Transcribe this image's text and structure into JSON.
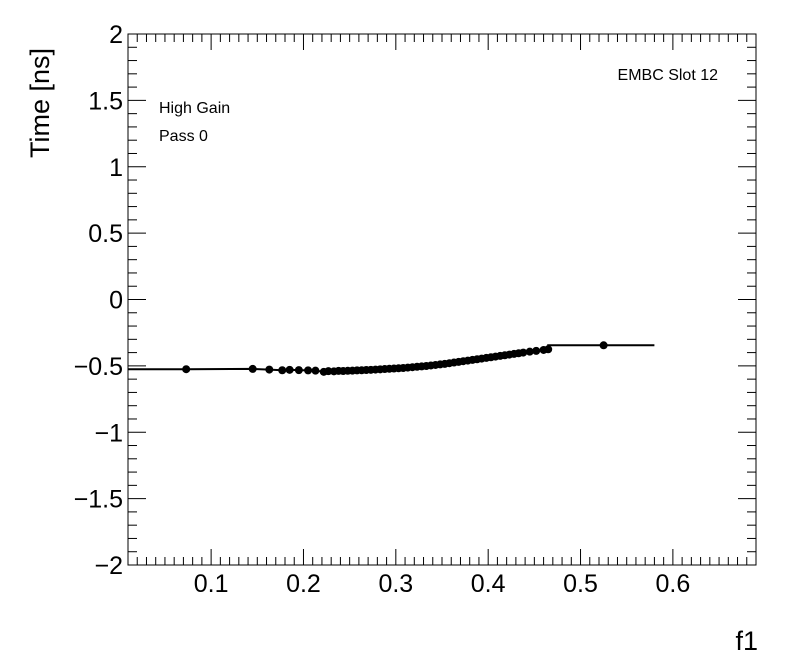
{
  "chart_data": {
    "type": "scatter",
    "title": "",
    "xlabel": "f1",
    "ylabel": "Time [ns]",
    "xlim": [
      0.01,
      0.69
    ],
    "ylim": [
      -2,
      2
    ],
    "x_ticks": [
      "0.1",
      "0.2",
      "0.3",
      "0.4",
      "0.5",
      "0.6"
    ],
    "y_ticks": [
      "−2",
      "−1.5",
      "−1",
      "−0.5",
      "0",
      "0.5",
      "1",
      "1.5",
      "2"
    ],
    "grid": false,
    "annotations": {
      "slot": "EMBC Slot 12",
      "gain": "High Gain",
      "pass": "Pass 0"
    },
    "series": [
      {
        "style": "markers",
        "color": "#000000",
        "points": [
          [
            0.073,
            -0.525
          ],
          [
            0.145,
            -0.523
          ],
          [
            0.163,
            -0.528
          ],
          [
            0.177,
            -0.533
          ],
          [
            0.185,
            -0.53
          ],
          [
            0.195,
            -0.532
          ],
          [
            0.205,
            -0.534
          ],
          [
            0.213,
            -0.536
          ],
          [
            0.222,
            -0.545
          ],
          [
            0.227,
            -0.54
          ],
          [
            0.233,
            -0.541
          ],
          [
            0.238,
            -0.538
          ],
          [
            0.243,
            -0.539
          ],
          [
            0.248,
            -0.537
          ],
          [
            0.253,
            -0.536
          ],
          [
            0.258,
            -0.534
          ],
          [
            0.263,
            -0.533
          ],
          [
            0.268,
            -0.531
          ],
          [
            0.273,
            -0.53
          ],
          [
            0.278,
            -0.528
          ],
          [
            0.283,
            -0.526
          ],
          [
            0.288,
            -0.524
          ],
          [
            0.293,
            -0.522
          ],
          [
            0.298,
            -0.52
          ],
          [
            0.303,
            -0.518
          ],
          [
            0.308,
            -0.516
          ],
          [
            0.313,
            -0.513
          ],
          [
            0.318,
            -0.51
          ],
          [
            0.323,
            -0.507
          ],
          [
            0.328,
            -0.504
          ],
          [
            0.333,
            -0.501
          ],
          [
            0.338,
            -0.497
          ],
          [
            0.343,
            -0.493
          ],
          [
            0.348,
            -0.489
          ],
          [
            0.353,
            -0.485
          ],
          [
            0.358,
            -0.48
          ],
          [
            0.363,
            -0.475
          ],
          [
            0.368,
            -0.47
          ],
          [
            0.373,
            -0.465
          ],
          [
            0.378,
            -0.46
          ],
          [
            0.383,
            -0.455
          ],
          [
            0.388,
            -0.45
          ],
          [
            0.393,
            -0.445
          ],
          [
            0.398,
            -0.44
          ],
          [
            0.403,
            -0.435
          ],
          [
            0.408,
            -0.43
          ],
          [
            0.413,
            -0.425
          ],
          [
            0.418,
            -0.42
          ],
          [
            0.423,
            -0.415
          ],
          [
            0.428,
            -0.41
          ],
          [
            0.433,
            -0.405
          ],
          [
            0.438,
            -0.4
          ],
          [
            0.445,
            -0.393
          ],
          [
            0.452,
            -0.387
          ],
          [
            0.46,
            -0.38
          ],
          [
            0.465,
            -0.375
          ],
          [
            0.525,
            -0.345
          ]
        ]
      },
      {
        "style": "line",
        "color": "#000000",
        "points": [
          [
            0.01,
            -0.525
          ],
          [
            0.073,
            -0.525
          ],
          [
            0.145,
            -0.523
          ],
          [
            0.163,
            -0.528
          ],
          [
            0.177,
            -0.533
          ],
          [
            0.185,
            -0.53
          ],
          [
            0.195,
            -0.532
          ],
          [
            0.205,
            -0.534
          ],
          [
            0.213,
            -0.536
          ],
          [
            0.222,
            -0.545
          ],
          [
            0.227,
            -0.54
          ],
          [
            0.233,
            -0.541
          ],
          [
            0.238,
            -0.538
          ],
          [
            0.243,
            -0.539
          ],
          [
            0.248,
            -0.537
          ],
          [
            0.253,
            -0.536
          ],
          [
            0.258,
            -0.534
          ],
          [
            0.263,
            -0.533
          ],
          [
            0.268,
            -0.531
          ],
          [
            0.273,
            -0.53
          ],
          [
            0.278,
            -0.528
          ],
          [
            0.283,
            -0.526
          ],
          [
            0.288,
            -0.524
          ],
          [
            0.293,
            -0.522
          ],
          [
            0.298,
            -0.52
          ],
          [
            0.303,
            -0.518
          ],
          [
            0.308,
            -0.516
          ],
          [
            0.313,
            -0.513
          ],
          [
            0.318,
            -0.51
          ],
          [
            0.323,
            -0.507
          ],
          [
            0.328,
            -0.504
          ],
          [
            0.333,
            -0.501
          ],
          [
            0.338,
            -0.497
          ],
          [
            0.343,
            -0.493
          ],
          [
            0.348,
            -0.489
          ],
          [
            0.353,
            -0.485
          ],
          [
            0.358,
            -0.48
          ],
          [
            0.363,
            -0.475
          ],
          [
            0.368,
            -0.47
          ],
          [
            0.373,
            -0.465
          ],
          [
            0.378,
            -0.46
          ],
          [
            0.383,
            -0.455
          ],
          [
            0.388,
            -0.45
          ],
          [
            0.393,
            -0.445
          ],
          [
            0.398,
            -0.44
          ],
          [
            0.403,
            -0.435
          ],
          [
            0.408,
            -0.43
          ],
          [
            0.413,
            -0.425
          ],
          [
            0.418,
            -0.42
          ],
          [
            0.423,
            -0.415
          ],
          [
            0.428,
            -0.41
          ],
          [
            0.433,
            -0.405
          ],
          [
            0.438,
            -0.4
          ],
          [
            0.445,
            -0.393
          ],
          [
            0.452,
            -0.387
          ],
          [
            0.46,
            -0.38
          ],
          [
            0.465,
            -0.375
          ],
          [
            0.465,
            -0.345
          ],
          [
            0.58,
            -0.345
          ]
        ]
      }
    ]
  }
}
